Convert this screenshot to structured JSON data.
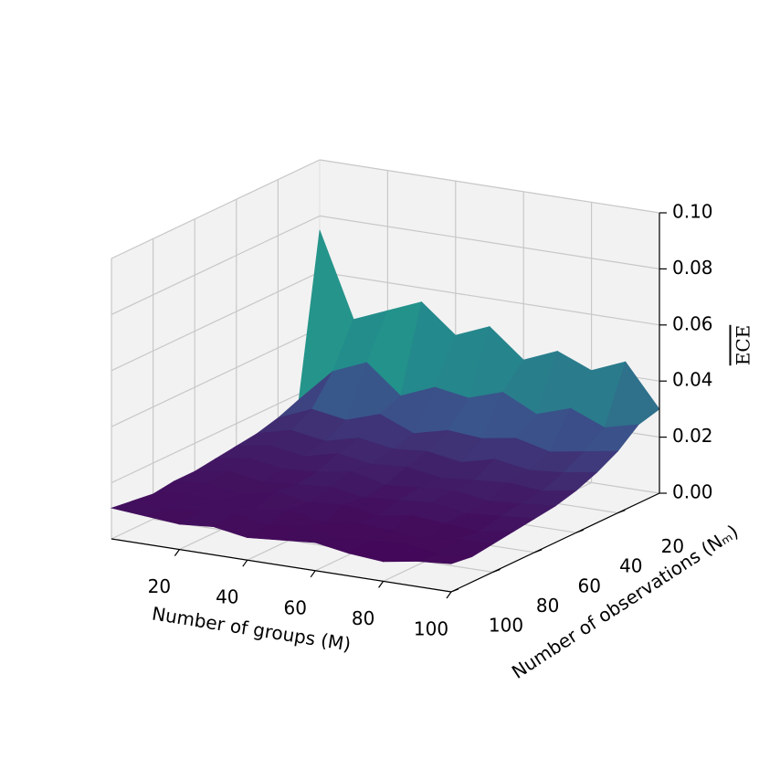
{
  "chart_data": {
    "type": "surface3d",
    "xlabel": "Number of groups (M)",
    "ylabel": "Number of observations (Nₘ)",
    "zlabel": "ECE",
    "x": [
      0,
      10,
      20,
      30,
      40,
      50,
      60,
      70,
      80,
      90,
      100
    ],
    "y": [
      0,
      10,
      20,
      30,
      40,
      50,
      60,
      70,
      80,
      90,
      100
    ],
    "z": [
      [
        0.075,
        0.045,
        0.05,
        0.055,
        0.045,
        0.05,
        0.04,
        0.045,
        0.04,
        0.045,
        0.03
      ],
      [
        0.018,
        0.03,
        0.035,
        0.025,
        0.03,
        0.028,
        0.032,
        0.026,
        0.03,
        0.025,
        0.028
      ],
      [
        0.015,
        0.02,
        0.018,
        0.022,
        0.017,
        0.02,
        0.019,
        0.021,
        0.018,
        0.02,
        0.022
      ],
      [
        0.013,
        0.016,
        0.014,
        0.017,
        0.015,
        0.016,
        0.014,
        0.017,
        0.015,
        0.016,
        0.018
      ],
      [
        0.012,
        0.014,
        0.012,
        0.015,
        0.013,
        0.014,
        0.012,
        0.013,
        0.014,
        0.013,
        0.015
      ],
      [
        0.011,
        0.013,
        0.011,
        0.012,
        0.014,
        0.011,
        0.012,
        0.013,
        0.011,
        0.012,
        0.013
      ],
      [
        0.01,
        0.012,
        0.01,
        0.011,
        0.012,
        0.01,
        0.011,
        0.012,
        0.01,
        0.011,
        0.012
      ],
      [
        0.01,
        0.011,
        0.009,
        0.012,
        0.01,
        0.011,
        0.009,
        0.011,
        0.01,
        0.009,
        0.011
      ],
      [
        0.009,
        0.011,
        0.01,
        0.009,
        0.011,
        0.008,
        0.01,
        0.009,
        0.008,
        0.01,
        0.01
      ],
      [
        0.01,
        0.009,
        0.01,
        0.011,
        0.009,
        0.01,
        0.008,
        0.009,
        0.01,
        0.008,
        0.009
      ],
      [
        0.011,
        0.01,
        0.009,
        0.01,
        0.008,
        0.009,
        0.01,
        0.008,
        0.007,
        0.009,
        0.01
      ]
    ],
    "xlim": [
      0,
      100
    ],
    "ylim": [
      0,
      100
    ],
    "zlim": [
      0,
      0.1
    ],
    "xticks": [
      20,
      40,
      60,
      80,
      100
    ],
    "yticks": [
      20,
      40,
      60,
      80,
      100
    ],
    "zticks": [
      {
        "value": 0,
        "label": "0.00"
      },
      {
        "value": 0.02,
        "label": "0.02"
      },
      {
        "value": 0.04,
        "label": "0.04"
      },
      {
        "value": 0.06,
        "label": "0.06"
      },
      {
        "value": 0.08,
        "label": "0.08"
      },
      {
        "value": 0.1,
        "label": "0.10"
      }
    ],
    "colormap": [
      "#440154",
      "#3b528b",
      "#21918c",
      "#5ec962",
      "#fde725"
    ],
    "grid": true
  }
}
